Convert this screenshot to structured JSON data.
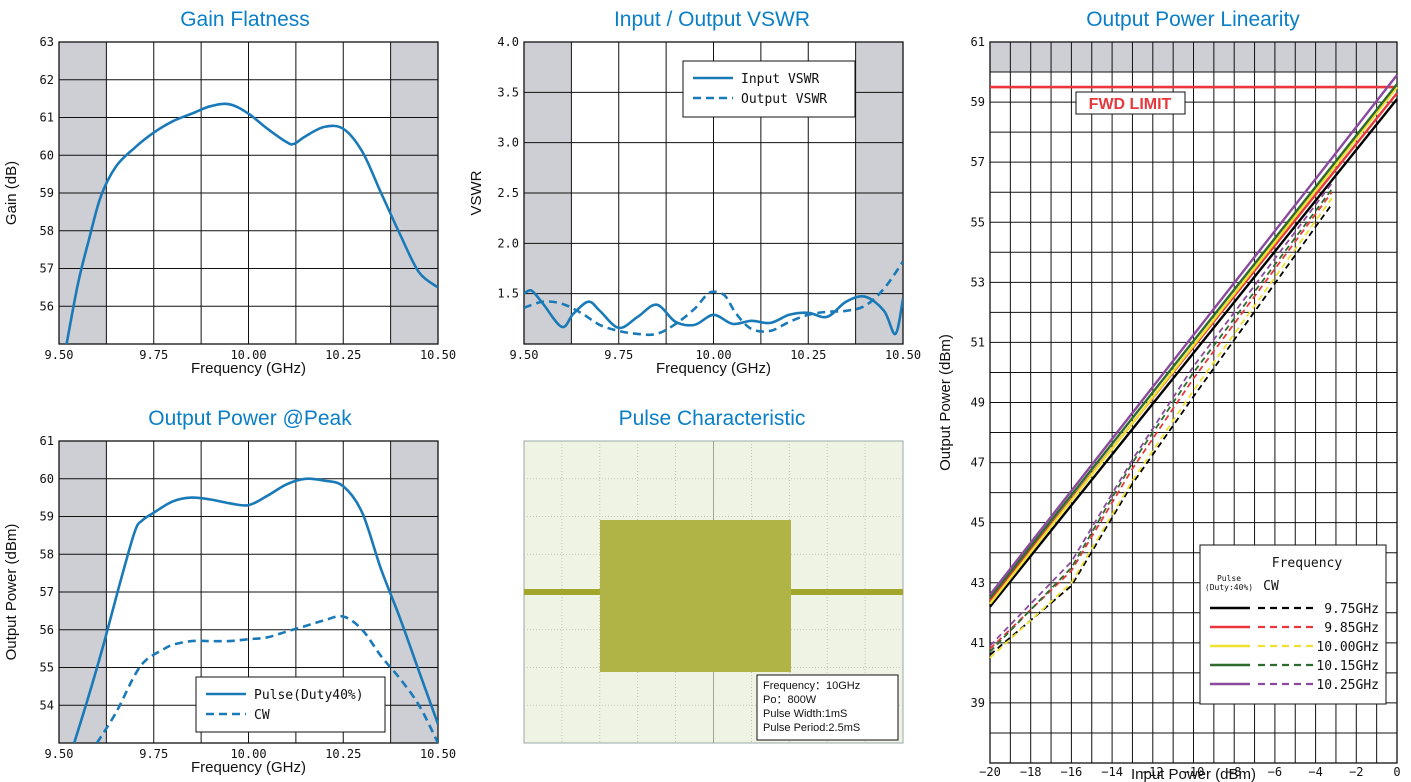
{
  "chart_data": [
    {
      "id": "gain",
      "type": "line",
      "title": "Gain Flatness",
      "xlabel": "Frequency (GHz)",
      "ylabel": "Gain (dB)",
      "xlim": [
        9.5,
        10.5
      ],
      "ylim": [
        55,
        63
      ],
      "xticks": [
        9.5,
        9.75,
        10.0,
        10.25,
        10.5
      ],
      "xtick_labels": [
        "9.50",
        "9.75",
        "10.00",
        "10.25",
        "10.50"
      ],
      "yticks": [
        56,
        57,
        58,
        59,
        60,
        61,
        62,
        63
      ],
      "ytick_labels": [
        "56",
        "57",
        "58",
        "59",
        "60",
        "61",
        "62",
        "63"
      ],
      "series": [
        {
          "style": "solid",
          "color": "#1a7ab8",
          "x": [
            9.52,
            9.55,
            9.58,
            9.61,
            9.65,
            9.7,
            9.75,
            9.8,
            9.85,
            9.9,
            9.95,
            10.0,
            10.05,
            10.1,
            10.12,
            10.15,
            10.2,
            10.25,
            10.3,
            10.35,
            10.4,
            10.45,
            10.5
          ],
          "y": [
            55.0,
            56.6,
            57.8,
            58.9,
            59.7,
            60.2,
            60.6,
            60.9,
            61.1,
            61.3,
            61.35,
            61.1,
            60.7,
            60.35,
            60.3,
            60.5,
            60.75,
            60.7,
            60.1,
            59.0,
            57.9,
            56.9,
            56.5
          ]
        }
      ]
    },
    {
      "id": "vswr",
      "type": "line",
      "title": "Input / Output VSWR",
      "xlabel": "Frequency (GHz)",
      "ylabel": "VSWR",
      "xlim": [
        9.5,
        10.5
      ],
      "ylim": [
        1.0,
        4.0
      ],
      "xticks": [
        9.5,
        9.75,
        10.0,
        10.25,
        10.5
      ],
      "xtick_labels": [
        "9.50",
        "9.75",
        "10.00",
        "10.25",
        "10.50"
      ],
      "yticks": [
        1.5,
        2.0,
        2.5,
        3.0,
        3.5,
        4.0
      ],
      "ytick_labels": [
        "1.5",
        "2.0",
        "2.5",
        "3.0",
        "3.5",
        "4.0"
      ],
      "legend": {
        "position": "top-right",
        "entries": [
          {
            "label": "Input VSWR",
            "style": "solid"
          },
          {
            "label": "Output VSWR",
            "style": "dashed"
          }
        ]
      },
      "series": [
        {
          "name": "Input VSWR",
          "style": "solid",
          "color": "#1a7ab8",
          "x": [
            9.5,
            9.52,
            9.55,
            9.6,
            9.63,
            9.67,
            9.7,
            9.75,
            9.8,
            9.85,
            9.9,
            9.95,
            10.0,
            10.05,
            10.1,
            10.15,
            10.2,
            10.25,
            10.3,
            10.35,
            10.4,
            10.45,
            10.48,
            10.5
          ],
          "y": [
            1.5,
            1.53,
            1.4,
            1.17,
            1.3,
            1.42,
            1.33,
            1.16,
            1.27,
            1.39,
            1.22,
            1.19,
            1.29,
            1.2,
            1.23,
            1.21,
            1.29,
            1.31,
            1.27,
            1.42,
            1.47,
            1.33,
            1.1,
            1.45
          ]
        },
        {
          "name": "Output VSWR",
          "style": "dashed",
          "color": "#1a7ab8",
          "x": [
            9.5,
            9.55,
            9.6,
            9.65,
            9.7,
            9.75,
            9.8,
            9.85,
            9.9,
            9.95,
            9.98,
            10.0,
            10.03,
            10.06,
            10.1,
            10.15,
            10.2,
            10.25,
            10.3,
            10.35,
            10.4,
            10.45,
            10.5
          ],
          "y": [
            1.36,
            1.42,
            1.4,
            1.31,
            1.19,
            1.13,
            1.1,
            1.1,
            1.2,
            1.35,
            1.48,
            1.52,
            1.48,
            1.3,
            1.15,
            1.13,
            1.22,
            1.29,
            1.32,
            1.33,
            1.38,
            1.55,
            1.82
          ]
        }
      ]
    },
    {
      "id": "linearity",
      "type": "line",
      "title": "Output Power Linearity",
      "xlabel": "Input Power (dBm)",
      "ylabel": "Output Power (dBm)",
      "xlim": [
        -20,
        0
      ],
      "ylim": [
        37,
        61
      ],
      "xticks": [
        -20,
        -18,
        -16,
        -14,
        -12,
        -10,
        -8,
        -6,
        -4,
        -2,
        0
      ],
      "xtick_labels": [
        "−20",
        "−18",
        "−16",
        "−14",
        "−12",
        "−10",
        "−8",
        "−6",
        "−4",
        "−2",
        "0"
      ],
      "yticks": [
        39,
        41,
        43,
        45,
        47,
        49,
        51,
        53,
        55,
        57,
        59,
        61
      ],
      "ytick_labels": [
        "39",
        "41",
        "43",
        "45",
        "47",
        "49",
        "51",
        "53",
        "55",
        "57",
        "59",
        "61"
      ],
      "limit": {
        "label": "FWD LIMIT",
        "y": 59.5,
        "color": "#e8383d"
      },
      "legend": {
        "title": "Frequency",
        "col_pulse": "Pulse",
        "col_pulse_sub": "(Duty:40%)",
        "col_cw": "CW",
        "position": "bottom-right",
        "entries": [
          {
            "label": "9.75GHz",
            "color": "#000000"
          },
          {
            "label": "9.85GHz",
            "color": "#e8383d"
          },
          {
            "label": "10.00GHz",
            "color": "#f0e030"
          },
          {
            "label": "10.15GHz",
            "color": "#2e6b2e"
          },
          {
            "label": "10.25GHz",
            "color": "#8b4a9e"
          }
        ]
      },
      "series": [
        {
          "freq": "9.75GHz",
          "mode": "Pulse",
          "style": "solid",
          "color": "#000000",
          "x": [
            -20,
            0
          ],
          "y": [
            42.2,
            59.1
          ]
        },
        {
          "freq": "9.85GHz",
          "mode": "Pulse",
          "style": "solid",
          "color": "#e8383d",
          "x": [
            -20,
            0
          ],
          "y": [
            42.4,
            59.3
          ]
        },
        {
          "freq": "10.00GHz",
          "mode": "Pulse",
          "style": "solid",
          "color": "#f0e030",
          "x": [
            -20,
            0
          ],
          "y": [
            42.3,
            59.5
          ]
        },
        {
          "freq": "10.15GHz",
          "mode": "Pulse",
          "style": "solid",
          "color": "#2e6b2e",
          "x": [
            -20,
            0
          ],
          "y": [
            42.5,
            59.6
          ]
        },
        {
          "freq": "10.25GHz",
          "mode": "Pulse",
          "style": "solid",
          "color": "#8b4a9e",
          "x": [
            -20,
            0
          ],
          "y": [
            42.6,
            59.9
          ]
        },
        {
          "freq": "9.75GHz",
          "mode": "CW",
          "style": "dashed",
          "color": "#000000",
          "x": [
            -20,
            -16,
            -13,
            -10,
            -3.2
          ],
          "y": [
            40.6,
            42.9,
            46.3,
            49.2,
            55.6
          ]
        },
        {
          "freq": "9.85GHz",
          "mode": "CW",
          "style": "dashed",
          "color": "#e8383d",
          "x": [
            -20,
            -16,
            -13,
            -10,
            -3.2
          ],
          "y": [
            40.8,
            43.4,
            46.8,
            49.8,
            56.0
          ]
        },
        {
          "freq": "10.00GHz",
          "mode": "CW",
          "style": "dashed",
          "color": "#f0e030",
          "x": [
            -20,
            -16,
            -13,
            -10,
            -3.2
          ],
          "y": [
            40.5,
            43.0,
            46.4,
            49.4,
            55.8
          ]
        },
        {
          "freq": "10.15GHz",
          "mode": "CW",
          "style": "dashed",
          "color": "#2e6b2e",
          "x": [
            -20,
            -16,
            -13,
            -10,
            -3.2
          ],
          "y": [
            40.7,
            43.5,
            47.0,
            50.0,
            56.1
          ]
        },
        {
          "freq": "10.25GHz",
          "mode": "CW",
          "style": "dashed",
          "color": "#8b4a9e",
          "x": [
            -20,
            -16,
            -13,
            -10,
            -3.2
          ],
          "y": [
            40.9,
            43.7,
            47.1,
            50.2,
            56.3
          ]
        }
      ]
    },
    {
      "id": "peak",
      "type": "line",
      "title": "Output Power @Peak",
      "xlabel": "Frequency (GHz)",
      "ylabel": "Output Power (dBm)",
      "xlim": [
        9.5,
        10.5
      ],
      "ylim": [
        53,
        61
      ],
      "xticks": [
        9.5,
        9.75,
        10.0,
        10.25,
        10.5
      ],
      "xtick_labels": [
        "9.50",
        "9.75",
        "10.00",
        "10.25",
        "10.50"
      ],
      "yticks": [
        54,
        55,
        56,
        57,
        58,
        59,
        60,
        61
      ],
      "ytick_labels": [
        "54",
        "55",
        "56",
        "57",
        "58",
        "59",
        "60",
        "61"
      ],
      "legend": {
        "position": "bottom-right",
        "entries": [
          {
            "label": "Pulse(Duty40%)",
            "style": "solid"
          },
          {
            "label": "CW",
            "style": "dashed"
          }
        ]
      },
      "series": [
        {
          "name": "Pulse(Duty40%)",
          "style": "solid",
          "color": "#1a7ab8",
          "x": [
            9.54,
            9.58,
            9.62,
            9.66,
            9.7,
            9.72,
            9.75,
            9.8,
            9.85,
            9.9,
            9.95,
            10.0,
            10.05,
            10.1,
            10.15,
            10.2,
            10.25,
            10.3,
            10.35,
            10.4,
            10.45,
            10.5
          ],
          "y": [
            53.0,
            54.3,
            55.7,
            57.2,
            58.6,
            58.9,
            59.1,
            59.4,
            59.5,
            59.45,
            59.35,
            59.3,
            59.55,
            59.85,
            60.0,
            59.95,
            59.8,
            59.1,
            57.6,
            56.3,
            54.9,
            53.5
          ]
        },
        {
          "name": "CW",
          "style": "dashed",
          "color": "#1a7ab8",
          "x": [
            9.6,
            9.65,
            9.7,
            9.73,
            9.77,
            9.8,
            9.85,
            9.9,
            9.95,
            10.0,
            10.05,
            10.1,
            10.15,
            10.2,
            10.25,
            10.3,
            10.35,
            10.4,
            10.45,
            10.5
          ],
          "y": [
            53.0,
            53.8,
            54.8,
            55.2,
            55.45,
            55.6,
            55.7,
            55.7,
            55.7,
            55.75,
            55.8,
            55.95,
            56.1,
            56.25,
            56.35,
            56.0,
            55.3,
            54.7,
            54.0,
            53.0
          ]
        }
      ]
    },
    {
      "id": "pulse",
      "type": "other",
      "title": "Pulse Characteristic",
      "info": [
        "Frequency：10GHz",
        "Po：800W",
        "Pulse Width:1mS",
        "Pulse Period:2.5mS"
      ],
      "trace_color": "#a3a62a"
    }
  ]
}
